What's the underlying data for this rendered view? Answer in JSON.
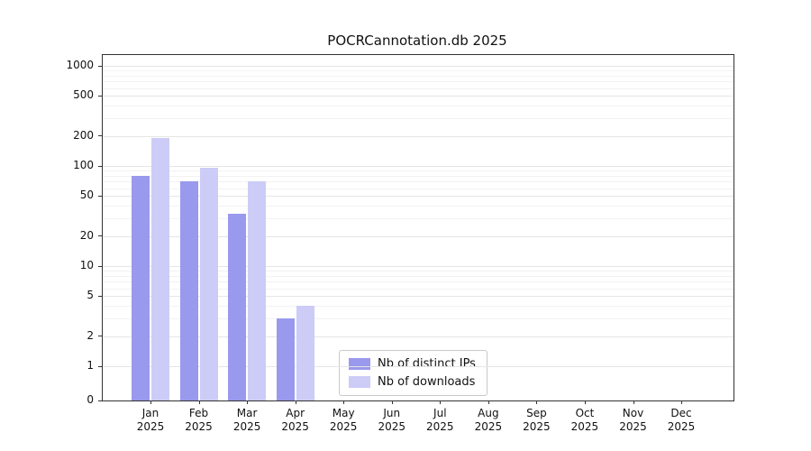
{
  "chart_data": {
    "type": "bar",
    "title": "POCRCannotation.db 2025",
    "categories": [
      "Jan",
      "Feb",
      "Mar",
      "Apr",
      "May",
      "Jun",
      "Jul",
      "Aug",
      "Sep",
      "Oct",
      "Nov",
      "Dec"
    ],
    "year_label": "2025",
    "series": [
      {
        "name": "Nb of distinct IPs",
        "color": "#9999ed",
        "values": [
          80,
          70,
          33,
          3,
          0,
          0,
          0,
          0,
          0,
          0,
          0,
          0
        ]
      },
      {
        "name": "Nb of downloads",
        "color": "#ccccf7",
        "values": [
          190,
          95,
          70,
          4,
          0,
          0,
          0,
          0,
          0,
          0,
          0,
          0
        ]
      }
    ],
    "yticks": [
      0,
      1,
      2,
      5,
      10,
      20,
      50,
      100,
      200,
      500,
      1000
    ],
    "minor_gridlines": [
      3,
      4,
      6,
      7,
      8,
      9,
      30,
      40,
      60,
      70,
      80,
      90,
      300,
      400,
      600,
      700,
      800,
      900
    ],
    "scale": "symlog",
    "xlabel": "",
    "ylabel": "",
    "grid": "on",
    "legend_position": "bottom-center"
  }
}
